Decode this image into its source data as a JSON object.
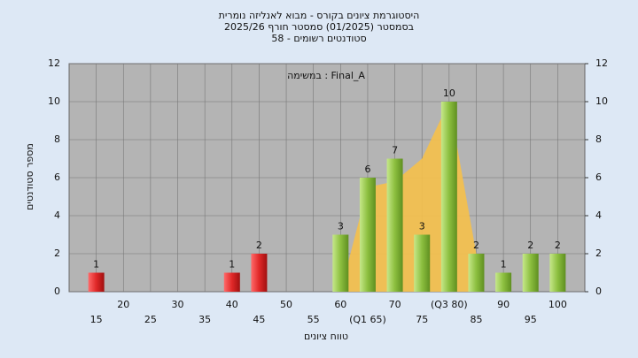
{
  "chart_data": {
    "type": "bar",
    "title": "היסטוגרמת ציונים בקורס - מבוא לאנליזה נומרית",
    "subtitle": "בסמסטר  (01/2025)  סמסטר חורף 2025/26",
    "subtitle2": "58 - סטודנטים רשומים",
    "annotation": "במשימה : Final_A",
    "ylabel": "מספר סטודנטים",
    "xlabel": "טווח ציונים",
    "categories": [
      "15",
      "20",
      "25",
      "30",
      "35",
      "40",
      "45",
      "50",
      "55",
      "60",
      "(Q1 65)",
      "70",
      "75",
      "(Q3 80)",
      "85",
      "90",
      "95",
      "100"
    ],
    "values": [
      1,
      0,
      0,
      0,
      0,
      1,
      2,
      0,
      0,
      3,
      6,
      7,
      3,
      10,
      2,
      1,
      2,
      2
    ],
    "colors": [
      "red",
      "red",
      "red",
      "red",
      "red",
      "red",
      "red",
      "red",
      "red",
      "green",
      "green",
      "green",
      "green",
      "green",
      "green",
      "green",
      "green",
      "green"
    ],
    "area": {
      "color": "#f5c04a",
      "values": [
        null,
        null,
        null,
        null,
        null,
        null,
        null,
        null,
        null,
        0,
        5.5,
        5.8,
        7,
        10,
        2,
        null,
        null,
        null
      ]
    },
    "ylim": [
      0,
      12
    ],
    "yticks": [
      0,
      2,
      4,
      6,
      8,
      10,
      12
    ],
    "y2lim": [
      0,
      12
    ],
    "y2ticks": [
      0,
      2,
      4,
      6,
      8,
      10,
      12
    ],
    "grid": true
  }
}
